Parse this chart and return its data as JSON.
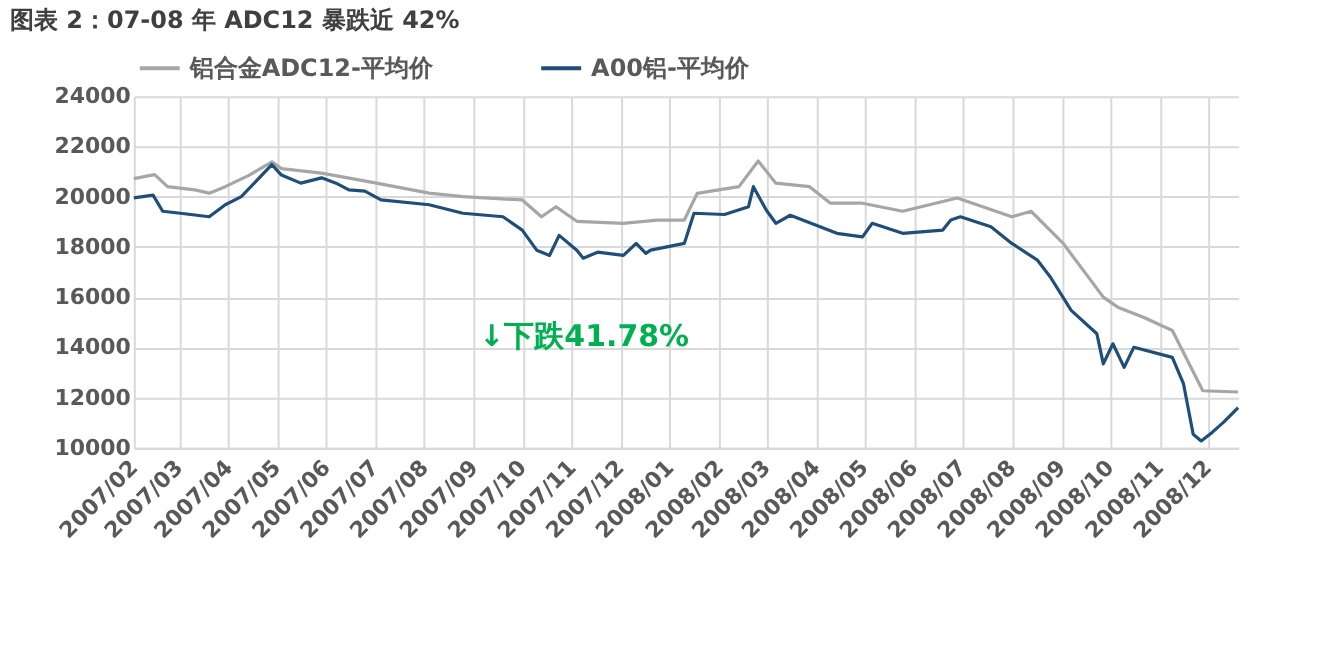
{
  "chart_data": {
    "type": "line",
    "title": "图表 2：07-08 年 ADC12 暴跌近 42%",
    "series": [
      {
        "name": "铝合金ADC12-平均价",
        "color": "#a6a6a6",
        "x": [
          "2007-02-01",
          "2007-02-14",
          "2007-02-22",
          "2007-03-11",
          "2007-03-20",
          "2007-03-30",
          "2007-04-14",
          "2007-04-28",
          "2007-05-04",
          "2007-05-29",
          "2007-06-28",
          "2007-08-04",
          "2007-08-25",
          "2007-10-01",
          "2007-10-13",
          "2007-10-22",
          "2007-11-04",
          "2007-12-03",
          "2007-12-24",
          "2008-01-10",
          "2008-01-18",
          "2008-02-13",
          "2008-02-25",
          "2008-03-07",
          "2008-03-28",
          "2008-04-10",
          "2008-04-30",
          "2008-05-25",
          "2008-06-28",
          "2008-08-01",
          "2008-08-13",
          "2008-09-02",
          "2008-09-27",
          "2008-10-06",
          "2008-10-22",
          "2008-11-09",
          "2008-11-28",
          "2008-12-20"
        ],
        "values": [
          20720,
          20880,
          20400,
          20270,
          20140,
          20400,
          20860,
          21390,
          21120,
          20940,
          20590,
          20140,
          20000,
          19870,
          19200,
          19600,
          19020,
          18940,
          19070,
          19070,
          20130,
          20400,
          21420,
          20540,
          20400,
          19740,
          19740,
          19420,
          19950,
          19200,
          19420,
          18140,
          16000,
          15600,
          15200,
          14670,
          12270,
          12220
        ]
      },
      {
        "name": "A00铝-平均价",
        "color": "#1f4e79",
        "x": [
          "2007-02-01",
          "2007-02-13",
          "2007-02-19",
          "2007-03-02",
          "2007-03-20",
          "2007-03-30",
          "2007-04-09",
          "2007-04-28",
          "2007-05-04",
          "2007-05-16",
          "2007-05-29",
          "2007-06-07",
          "2007-06-15",
          "2007-06-25",
          "2007-07-05",
          "2007-08-04",
          "2007-08-25",
          "2007-09-19",
          "2007-10-01",
          "2007-10-10",
          "2007-10-18",
          "2007-10-24",
          "2007-11-04",
          "2007-11-08",
          "2007-11-17",
          "2007-12-03",
          "2007-12-11",
          "2007-12-17",
          "2007-12-20",
          "2008-01-10",
          "2008-01-16",
          "2008-02-04",
          "2008-02-19",
          "2008-02-22",
          "2008-03-01",
          "2008-03-07",
          "2008-03-16",
          "2008-04-14",
          "2008-04-30",
          "2008-05-06",
          "2008-05-25",
          "2008-06-19",
          "2008-06-24",
          "2008-06-30",
          "2008-07-19",
          "2008-08-01",
          "2008-08-17",
          "2008-08-25",
          "2008-09-07",
          "2008-09-23",
          "2008-09-27",
          "2008-10-03",
          "2008-10-10",
          "2008-10-16",
          "2008-11-09",
          "2008-11-16",
          "2008-11-22",
          "2008-11-27",
          "2008-12-04",
          "2008-12-11",
          "2008-12-20"
        ],
        "values": [
          19950,
          20060,
          19420,
          19340,
          19200,
          19680,
          20000,
          21280,
          20860,
          20540,
          20750,
          20540,
          20270,
          20220,
          19870,
          19680,
          19340,
          19200,
          18670,
          17870,
          17660,
          18460,
          17870,
          17550,
          17790,
          17660,
          18140,
          17740,
          17870,
          18140,
          19340,
          19290,
          19600,
          20400,
          19470,
          18940,
          19260,
          18540,
          18400,
          18940,
          18540,
          18670,
          19070,
          19200,
          18800,
          18140,
          17470,
          16800,
          15470,
          14540,
          13340,
          14140,
          13200,
          14000,
          13600,
          12540,
          10540,
          10270,
          10620,
          11020,
          11600
        ]
      }
    ],
    "xlim": [
      "2007-02-01",
      "2008-12-20"
    ],
    "xticks": [
      {
        "value": "2007-02-01",
        "label": "2007/02"
      },
      {
        "value": "2007-03-01",
        "label": "2007/03"
      },
      {
        "value": "2007-04-01",
        "label": "2007/04"
      },
      {
        "value": "2007-05-01",
        "label": "2007/05"
      },
      {
        "value": "2007-06-01",
        "label": "2007/06"
      },
      {
        "value": "2007-07-01",
        "label": "2007/07"
      },
      {
        "value": "2007-08-01",
        "label": "2007/08"
      },
      {
        "value": "2007-09-01",
        "label": "2007/09"
      },
      {
        "value": "2007-10-01",
        "label": "2007/10"
      },
      {
        "value": "2007-11-01",
        "label": "2007/11"
      },
      {
        "value": "2007-12-01",
        "label": "2007/12"
      },
      {
        "value": "2008-01-01",
        "label": "2008/01"
      },
      {
        "value": "2008-02-01",
        "label": "2008/02"
      },
      {
        "value": "2008-03-01",
        "label": "2008/03"
      },
      {
        "value": "2008-04-01",
        "label": "2008/04"
      },
      {
        "value": "2008-05-01",
        "label": "2008/05"
      },
      {
        "value": "2008-06-01",
        "label": "2008/06"
      },
      {
        "value": "2008-07-01",
        "label": "2008/07"
      },
      {
        "value": "2008-08-01",
        "label": "2008/08"
      },
      {
        "value": "2008-09-01",
        "label": "2008/09"
      },
      {
        "value": "2008-10-01",
        "label": "2008/10"
      },
      {
        "value": "2008-11-01",
        "label": "2008/11"
      },
      {
        "value": "2008-12-01",
        "label": "2008/12"
      }
    ],
    "ylim": [
      10000,
      24000
    ],
    "yticks": [
      10000,
      12000,
      14000,
      16000,
      18000,
      20000,
      22000,
      24000
    ],
    "grid": true,
    "legend": "top",
    "marker": "none",
    "line_style": "solid",
    "annotations": [
      "↓下跌41.78%"
    ]
  }
}
